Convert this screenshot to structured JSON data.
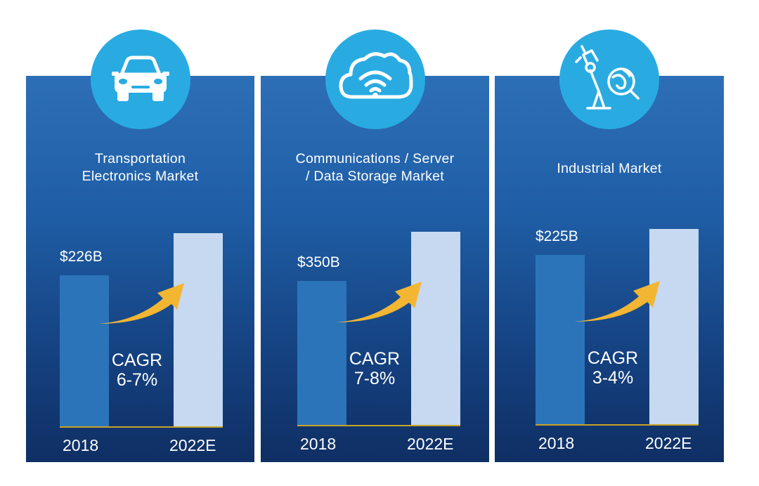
{
  "markets": [
    {
      "icon": "car-icon",
      "title": "Transportation\nElectronics Market",
      "value_2018": "$226B",
      "cagr_label": "CAGR",
      "cagr_value": "6-7%",
      "year_2018": "2018",
      "year_2022": "2022E"
    },
    {
      "icon": "cloud-wifi-icon",
      "title": "Communications / Server\n/ Data Storage Market",
      "value_2018": "$350B",
      "cagr_label": "CAGR",
      "cagr_value": "7-8%",
      "year_2018": "2018",
      "year_2022": "2022E"
    },
    {
      "icon": "robot-arm-globe-icon",
      "title": "Industrial Market",
      "value_2018": "$225B",
      "cagr_label": "CAGR",
      "cagr_value": "3-4%",
      "year_2018": "2018",
      "year_2022": "2022E"
    }
  ],
  "colors": {
    "panel_top": "#2d6fb7",
    "panel_bottom": "#0f2f64",
    "icon_circle": "#29abe2",
    "bar_2018": "#2b74b9",
    "bar_2022": "#c6d9f0",
    "arrow": "#f2b632"
  },
  "chart_data": [
    {
      "type": "bar",
      "title": "Transportation Electronics Market",
      "categories": [
        "2018",
        "2022E"
      ],
      "values": [
        226,
        290
      ],
      "unit": "$B",
      "data_labels": [
        "$226B",
        ""
      ],
      "annotation": "CAGR 6-7%"
    },
    {
      "type": "bar",
      "title": "Communications / Server / Data Storage Market",
      "categories": [
        "2018",
        "2022E"
      ],
      "values": [
        350,
        470
      ],
      "unit": "$B",
      "data_labels": [
        "$350B",
        ""
      ],
      "annotation": "CAGR 7-8%"
    },
    {
      "type": "bar",
      "title": "Industrial Market",
      "categories": [
        "2018",
        "2022E"
      ],
      "values": [
        225,
        260
      ],
      "unit": "$B",
      "data_labels": [
        "$225B",
        ""
      ],
      "annotation": "CAGR 3-4%"
    }
  ]
}
